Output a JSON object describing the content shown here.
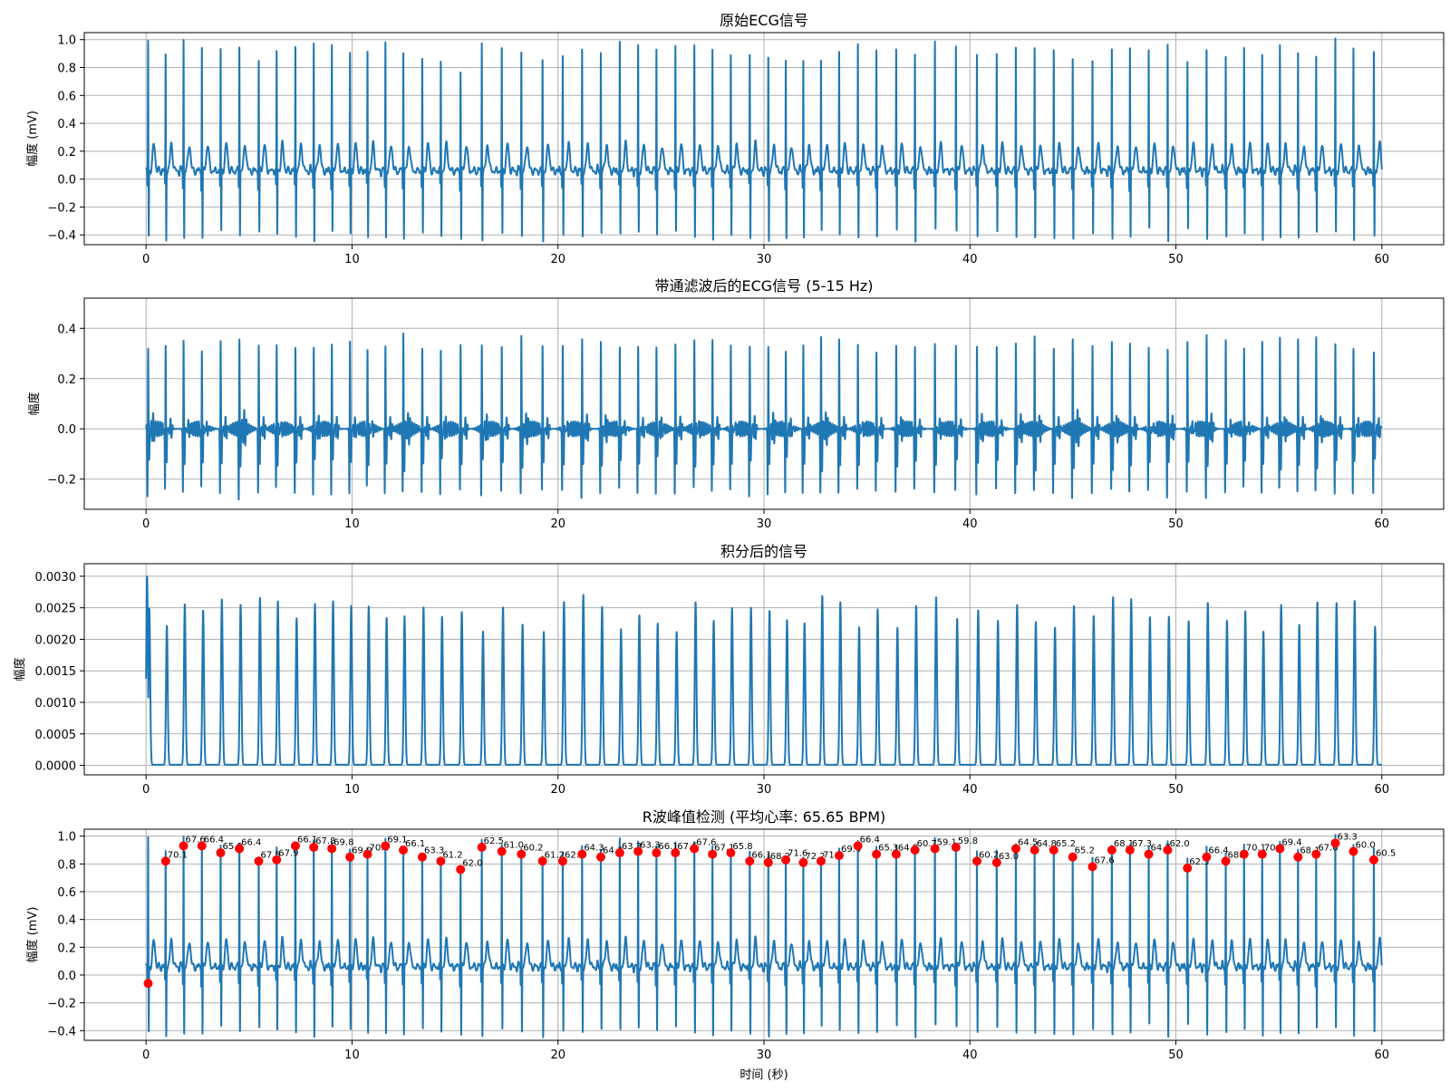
{
  "figure": {
    "background": "#ffffff",
    "line_color": "#1f77b4",
    "peak_color": "#ff0000",
    "grid_color": "#b0b0b0",
    "x_label": "时间 (秒)"
  },
  "chart_data": [
    {
      "type": "line",
      "title": "原始ECG信号",
      "xlabel": "",
      "ylabel": "幅度 (mV)",
      "xlim": [
        -3,
        63
      ],
      "ylim": [
        -0.47,
        1.05
      ],
      "xticks": [
        0,
        10,
        20,
        30,
        40,
        50,
        60
      ],
      "xtick_labels": [
        "0",
        "10",
        "20",
        "30",
        "40",
        "50",
        "60"
      ],
      "yticks": [
        -0.4,
        -0.2,
        0.0,
        0.2,
        0.4,
        0.6,
        0.8,
        1.0
      ],
      "ytick_labels": [
        "−0.4",
        "−0.2",
        "0.0",
        "0.2",
        "0.4",
        "0.6",
        "0.8",
        "1.0"
      ],
      "grid": true,
      "signal": "raw_ecg",
      "series": [
        {
          "values": "ECG trace sampled from 0 to 60 s; R peaks near 0.78–0.98 mV, S troughs near −0.35 to −0.41 mV, T waves near 0.25 mV"
        }
      ]
    },
    {
      "type": "line",
      "title": "带通滤波后的ECG信号 (5-15 Hz)",
      "xlabel": "",
      "ylabel": "幅度",
      "xlim": [
        -3,
        63
      ],
      "ylim": [
        -0.32,
        0.52
      ],
      "xticks": [
        0,
        10,
        20,
        30,
        40,
        50,
        60
      ],
      "xtick_labels": [
        "0",
        "10",
        "20",
        "30",
        "40",
        "50",
        "60"
      ],
      "yticks": [
        -0.2,
        0.0,
        0.2,
        0.4
      ],
      "ytick_labels": [
        "−0.2",
        "0.0",
        "0.2",
        "0.4"
      ],
      "grid": true,
      "signal": "filtered",
      "series": [
        {
          "values": "band-pass filtered trace; peaks 0.33–0.48, troughs −0.25 to −0.29"
        }
      ]
    },
    {
      "type": "line",
      "title": "积分后的信号",
      "xlabel": "",
      "ylabel": "幅度",
      "xlim": [
        -3,
        63
      ],
      "ylim": [
        -0.00015,
        0.0032
      ],
      "xticks": [
        0,
        10,
        20,
        30,
        40,
        50,
        60
      ],
      "xtick_labels": [
        "0",
        "10",
        "20",
        "30",
        "40",
        "50",
        "60"
      ],
      "yticks": [
        0.0,
        0.0005,
        0.001,
        0.0015,
        0.002,
        0.0025,
        0.003
      ],
      "ytick_labels": [
        "0.0000",
        "0.0005",
        "0.0010",
        "0.0015",
        "0.0020",
        "0.0025",
        "0.0030"
      ],
      "grid": true,
      "signal": "integrated",
      "series": [
        {
          "values": "moving-window integrated energy; peaks 0.0021–0.0031, baseline 0"
        }
      ]
    },
    {
      "type": "line",
      "title": "R波峰值检测 (平均心率: 65.65 BPM)",
      "xlabel": "时间 (秒)",
      "ylabel": "幅度 (mV)",
      "xlim": [
        -3,
        63
      ],
      "ylim": [
        -0.47,
        1.05
      ],
      "xticks": [
        0,
        10,
        20,
        30,
        40,
        50,
        60
      ],
      "xtick_labels": [
        "0",
        "10",
        "20",
        "30",
        "40",
        "50",
        "60"
      ],
      "yticks": [
        -0.4,
        -0.2,
        0.0,
        0.2,
        0.4,
        0.6,
        0.8,
        1.0
      ],
      "ytick_labels": [
        "−0.4",
        "−0.2",
        "0.0",
        "0.2",
        "0.4",
        "0.6",
        "0.8",
        "1.0"
      ],
      "grid": true,
      "signal": "raw_ecg",
      "peaks": {
        "marker_color": "#ff0000",
        "x": [
          0.1,
          0.95,
          1.82,
          2.71,
          3.62,
          4.53,
          5.47,
          6.34,
          7.25,
          8.14,
          9.02,
          9.9,
          10.75,
          11.62,
          12.49,
          13.41,
          14.31,
          15.27,
          16.3,
          17.27,
          18.22,
          19.25,
          20.23,
          21.17,
          22.08,
          23.0,
          23.89,
          24.78,
          25.7,
          26.62,
          27.5,
          28.39,
          29.31,
          30.21,
          31.06,
          31.91,
          32.77,
          33.65,
          34.56,
          35.46,
          36.42,
          37.33,
          38.3,
          39.32,
          40.34,
          41.3,
          42.23,
          43.14,
          44.07,
          44.99,
          45.95,
          46.89,
          47.77,
          48.68,
          49.6,
          50.56,
          51.49,
          52.42,
          53.31,
          54.19,
          55.05,
          55.93,
          56.81,
          57.74,
          58.62,
          59.61
        ],
        "y": [
          -0.06,
          0.82,
          0.93,
          0.93,
          0.88,
          0.91,
          0.82,
          0.83,
          0.93,
          0.92,
          0.91,
          0.85,
          0.87,
          0.93,
          0.9,
          0.85,
          0.82,
          0.76,
          0.92,
          0.89,
          0.87,
          0.82,
          0.82,
          0.87,
          0.85,
          0.88,
          0.89,
          0.88,
          0.88,
          0.91,
          0.87,
          0.88,
          0.82,
          0.81,
          0.83,
          0.81,
          0.82,
          0.86,
          0.93,
          0.87,
          0.87,
          0.9,
          0.91,
          0.92,
          0.82,
          0.81,
          0.91,
          0.9,
          0.9,
          0.85,
          0.78,
          0.9,
          0.9,
          0.87,
          0.9,
          0.77,
          0.85,
          0.82,
          0.87,
          0.87,
          0.91,
          0.85,
          0.87,
          0.95,
          0.89,
          0.83
        ],
        "labels": [
          "",
          "70.1",
          "67.6",
          "66.4",
          "65.9",
          "66.4",
          "67.5",
          "67.9",
          "66.1",
          "67.8",
          "69.8",
          "69.0",
          "70.4",
          "69.1",
          "66.1",
          "63.3",
          "61.2",
          "62.0",
          "62.5",
          "61.0",
          "60.2",
          "61.2",
          "62.9",
          "64.3",
          "64.3",
          "63.3",
          "63.3",
          "66.1",
          "67.6",
          "67.6",
          "67.1",
          "65.8",
          "66.1",
          "68.2",
          "71.6",
          "72.2",
          "71.0",
          "69.4",
          "66.4",
          "65.3",
          "64.8",
          "60.7",
          "59.1",
          "59.8",
          "60.2",
          "63.0",
          "64.5",
          "64.8",
          "65.2",
          "65.2",
          "67.6",
          "68.1",
          "67.3",
          "64.7",
          "62.0",
          "62.5",
          "66.4",
          "68.0",
          "70.1",
          "70.0",
          "69.4",
          "68.1",
          "67.6",
          "63.3",
          "60.0",
          "60.5"
        ]
      }
    }
  ]
}
